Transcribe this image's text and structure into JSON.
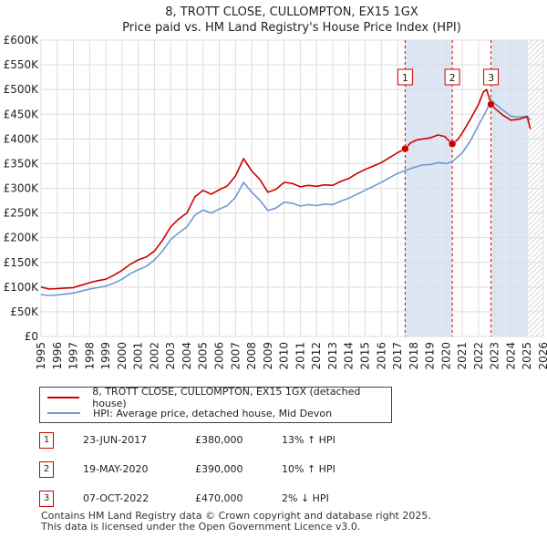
{
  "chart_data": {
    "type": "line",
    "title": "8, TROTT CLOSE, CULLOMPTON, EX15 1GX",
    "subtitle": "Price paid vs. HM Land Registry's House Price Index (HPI)",
    "xlim": [
      1995,
      2026
    ],
    "ylim": [
      0,
      600000
    ],
    "x_ticks": [
      "1995",
      "1996",
      "1997",
      "1998",
      "1999",
      "2000",
      "2001",
      "2002",
      "2003",
      "2004",
      "2005",
      "2006",
      "2007",
      "2008",
      "2009",
      "2010",
      "2011",
      "2012",
      "2013",
      "2014",
      "2015",
      "2016",
      "2017",
      "2018",
      "2019",
      "2020",
      "2021",
      "2022",
      "2023",
      "2024",
      "2025",
      "2026"
    ],
    "y_ticks": [
      {
        "value": 0,
        "label": "£0"
      },
      {
        "value": 50000,
        "label": "£50K"
      },
      {
        "value": 100000,
        "label": "£100K"
      },
      {
        "value": 150000,
        "label": "£150K"
      },
      {
        "value": 200000,
        "label": "£200K"
      },
      {
        "value": 250000,
        "label": "£250K"
      },
      {
        "value": 300000,
        "label": "£300K"
      },
      {
        "value": 350000,
        "label": "£350K"
      },
      {
        "value": 400000,
        "label": "£400K"
      },
      {
        "value": 450000,
        "label": "£450K"
      },
      {
        "value": 500000,
        "label": "£500K"
      },
      {
        "value": 550000,
        "label": "£550K"
      },
      {
        "value": 600000,
        "label": "£600K"
      }
    ],
    "series": [
      {
        "name": "8, TROTT CLOSE, CULLOMPTON, EX15 1GX (detached house)",
        "color": "#cc0000",
        "points": [
          [
            1995.0,
            100000
          ],
          [
            1995.5,
            96000
          ],
          [
            1996.0,
            97000
          ],
          [
            1996.5,
            98000
          ],
          [
            1997.0,
            99000
          ],
          [
            1997.5,
            104000
          ],
          [
            1998.0,
            109000
          ],
          [
            1998.5,
            113000
          ],
          [
            1999.0,
            116000
          ],
          [
            1999.5,
            124000
          ],
          [
            2000.0,
            134000
          ],
          [
            2000.5,
            146000
          ],
          [
            2001.0,
            155000
          ],
          [
            2001.5,
            161000
          ],
          [
            2002.0,
            173000
          ],
          [
            2002.5,
            195000
          ],
          [
            2003.0,
            222000
          ],
          [
            2003.5,
            238000
          ],
          [
            2004.0,
            250000
          ],
          [
            2004.5,
            283000
          ],
          [
            2005.0,
            296000
          ],
          [
            2005.5,
            288000
          ],
          [
            2006.0,
            297000
          ],
          [
            2006.5,
            305000
          ],
          [
            2007.0,
            325000
          ],
          [
            2007.5,
            360000
          ],
          [
            2008.0,
            335000
          ],
          [
            2008.5,
            318000
          ],
          [
            2009.0,
            292000
          ],
          [
            2009.5,
            298000
          ],
          [
            2010.0,
            312000
          ],
          [
            2010.5,
            310000
          ],
          [
            2011.0,
            303000
          ],
          [
            2011.5,
            306000
          ],
          [
            2012.0,
            304000
          ],
          [
            2012.5,
            307000
          ],
          [
            2013.0,
            306000
          ],
          [
            2013.5,
            314000
          ],
          [
            2014.0,
            320000
          ],
          [
            2014.5,
            330000
          ],
          [
            2015.0,
            338000
          ],
          [
            2015.5,
            345000
          ],
          [
            2016.0,
            352000
          ],
          [
            2016.5,
            362000
          ],
          [
            2017.0,
            372000
          ],
          [
            2017.47,
            380000
          ],
          [
            2017.8,
            392000
          ],
          [
            2018.2,
            398000
          ],
          [
            2018.6,
            400000
          ],
          [
            2019.0,
            402000
          ],
          [
            2019.5,
            408000
          ],
          [
            2019.9,
            405000
          ],
          [
            2020.38,
            390000
          ],
          [
            2020.7,
            398000
          ],
          [
            2021.0,
            412000
          ],
          [
            2021.5,
            440000
          ],
          [
            2022.0,
            470000
          ],
          [
            2022.3,
            495000
          ],
          [
            2022.5,
            500000
          ],
          [
            2022.77,
            470000
          ],
          [
            2023.0,
            462000
          ],
          [
            2023.5,
            448000
          ],
          [
            2024.0,
            438000
          ],
          [
            2024.5,
            440000
          ],
          [
            2025.0,
            445000
          ],
          [
            2025.2,
            420000
          ]
        ]
      },
      {
        "name": "HPI: Average price, detached house, Mid Devon",
        "color": "#6b9bd2",
        "points": [
          [
            1995.0,
            85000
          ],
          [
            1995.5,
            83000
          ],
          [
            1996.0,
            84000
          ],
          [
            1996.5,
            86000
          ],
          [
            1997.0,
            88000
          ],
          [
            1997.5,
            92000
          ],
          [
            1998.0,
            96000
          ],
          [
            1998.5,
            99000
          ],
          [
            1999.0,
            102000
          ],
          [
            1999.5,
            108000
          ],
          [
            2000.0,
            116000
          ],
          [
            2000.5,
            127000
          ],
          [
            2001.0,
            135000
          ],
          [
            2001.5,
            142000
          ],
          [
            2002.0,
            155000
          ],
          [
            2002.5,
            173000
          ],
          [
            2003.0,
            196000
          ],
          [
            2003.5,
            210000
          ],
          [
            2004.0,
            222000
          ],
          [
            2004.5,
            246000
          ],
          [
            2005.0,
            256000
          ],
          [
            2005.5,
            250000
          ],
          [
            2006.0,
            258000
          ],
          [
            2006.5,
            265000
          ],
          [
            2007.0,
            282000
          ],
          [
            2007.5,
            312000
          ],
          [
            2008.0,
            292000
          ],
          [
            2008.5,
            276000
          ],
          [
            2009.0,
            255000
          ],
          [
            2009.5,
            260000
          ],
          [
            2010.0,
            272000
          ],
          [
            2010.5,
            270000
          ],
          [
            2011.0,
            264000
          ],
          [
            2011.5,
            267000
          ],
          [
            2012.0,
            265000
          ],
          [
            2012.5,
            268000
          ],
          [
            2013.0,
            267000
          ],
          [
            2013.5,
            274000
          ],
          [
            2014.0,
            280000
          ],
          [
            2014.5,
            288000
          ],
          [
            2015.0,
            296000
          ],
          [
            2015.5,
            304000
          ],
          [
            2016.0,
            312000
          ],
          [
            2016.5,
            321000
          ],
          [
            2017.0,
            330000
          ],
          [
            2017.47,
            336000
          ],
          [
            2018.0,
            342000
          ],
          [
            2018.5,
            347000
          ],
          [
            2019.0,
            348000
          ],
          [
            2019.5,
            352000
          ],
          [
            2020.0,
            350000
          ],
          [
            2020.38,
            354000
          ],
          [
            2021.0,
            372000
          ],
          [
            2021.5,
            396000
          ],
          [
            2022.0,
            428000
          ],
          [
            2022.5,
            458000
          ],
          [
            2022.77,
            480000
          ],
          [
            2023.0,
            472000
          ],
          [
            2023.5,
            458000
          ],
          [
            2024.0,
            446000
          ],
          [
            2024.5,
            444000
          ],
          [
            2025.0,
            446000
          ],
          [
            2025.2,
            438000
          ]
        ]
      }
    ],
    "markers": [
      {
        "label": "1",
        "x": 2017.47,
        "y": 380000
      },
      {
        "label": "2",
        "x": 2020.38,
        "y": 390000
      },
      {
        "label": "3",
        "x": 2022.77,
        "y": 470000
      }
    ],
    "shaded_periods": [
      [
        2017.47,
        2020.38
      ],
      [
        2022.77,
        2025.0
      ]
    ],
    "hatched_from": 2025.0
  },
  "legend": {
    "property": "8, TROTT CLOSE, CULLOMPTON, EX15 1GX (detached house)",
    "hpi": "HPI: Average price, detached house, Mid Devon"
  },
  "sales": [
    {
      "num": "1",
      "date": "23-JUN-2017",
      "price": "£380,000",
      "hpi": "13% ↑ HPI"
    },
    {
      "num": "2",
      "date": "19-MAY-2020",
      "price": "£390,000",
      "hpi": "10% ↑ HPI"
    },
    {
      "num": "3",
      "date": "07-OCT-2022",
      "price": "£470,000",
      "hpi": "2% ↓ HPI"
    }
  ],
  "footer": {
    "line1": "Contains HM Land Registry data © Crown copyright and database right 2025.",
    "line2": "This data is licensed under the Open Government Licence v3.0."
  },
  "colors": {
    "property_line": "#cc0000",
    "hpi_line": "#6b9bd2",
    "shade": "#dde6f5",
    "grid": "#dddddd",
    "marker_line": "#cc0000"
  }
}
